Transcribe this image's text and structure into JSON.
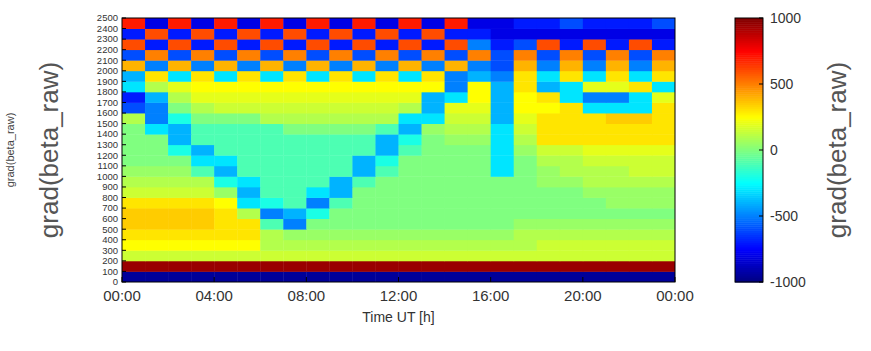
{
  "chart_data": {
    "type": "heatmap",
    "xlabel": "Time UT [h]",
    "ylabel": "grad(beta_raw)",
    "annotations": [
      "grad(beta_raw)"
    ],
    "xlim": [
      0,
      24
    ],
    "ylim": [
      0,
      2500
    ],
    "xticks": [
      {
        "value": 0,
        "label": "00:00"
      },
      {
        "value": 4,
        "label": "04:00"
      },
      {
        "value": 8,
        "label": "08:00"
      },
      {
        "value": 12,
        "label": "12:00"
      },
      {
        "value": 16,
        "label": "16:00"
      },
      {
        "value": 20,
        "label": "20:00"
      },
      {
        "value": 24,
        "label": "00:00"
      }
    ],
    "yticks": [
      0,
      100,
      200,
      300,
      400,
      500,
      600,
      700,
      800,
      900,
      1000,
      1100,
      1200,
      1300,
      1400,
      1500,
      1600,
      1700,
      1800,
      1900,
      2000,
      2100,
      2200,
      2300,
      2400,
      2500
    ],
    "grid": false,
    "x": [
      0,
      1,
      2,
      3,
      4,
      5,
      6,
      7,
      8,
      9,
      10,
      11,
      12,
      13,
      14,
      15,
      16,
      17,
      18,
      19,
      20,
      21,
      22,
      23
    ],
    "y": [
      0,
      100,
      200,
      300,
      400,
      500,
      600,
      700,
      800,
      900,
      1000,
      1100,
      1200,
      1300,
      1400,
      1500,
      1600,
      1700,
      1800,
      1900,
      2000,
      2100,
      2200,
      2300,
      2400
    ],
    "values": [
      [
        -950,
        -950,
        -950,
        -950,
        -950,
        -950,
        -950,
        -950,
        -950,
        -950,
        -950,
        -950,
        -950,
        -950,
        -950,
        -950,
        -950,
        -950,
        -950,
        -950,
        -950,
        -950,
        -950,
        -950
      ],
      [
        950,
        950,
        950,
        950,
        950,
        950,
        950,
        950,
        950,
        950,
        950,
        950,
        950,
        950,
        950,
        950,
        950,
        950,
        950,
        950,
        950,
        950,
        950,
        950
      ],
      [
        150,
        150,
        150,
        150,
        150,
        150,
        150,
        150,
        150,
        150,
        150,
        150,
        150,
        150,
        150,
        150,
        150,
        150,
        150,
        150,
        150,
        150,
        150,
        150
      ],
      [
        250,
        250,
        250,
        250,
        250,
        250,
        100,
        100,
        100,
        100,
        100,
        100,
        100,
        100,
        100,
        100,
        100,
        100,
        150,
        150,
        150,
        150,
        150,
        150
      ],
      [
        300,
        300,
        300,
        300,
        300,
        300,
        100,
        50,
        50,
        50,
        50,
        50,
        50,
        50,
        50,
        50,
        50,
        100,
        100,
        100,
        100,
        100,
        100,
        100
      ],
      [
        350,
        350,
        350,
        350,
        300,
        300,
        -100,
        -500,
        0,
        0,
        0,
        0,
        0,
        0,
        0,
        0,
        0,
        50,
        50,
        50,
        50,
        50,
        50,
        50
      ],
      [
        350,
        350,
        350,
        350,
        300,
        100,
        -500,
        -400,
        -200,
        0,
        0,
        0,
        0,
        0,
        0,
        0,
        0,
        0,
        0,
        0,
        0,
        0,
        0,
        0
      ],
      [
        300,
        300,
        300,
        300,
        250,
        -300,
        -200,
        -100,
        -500,
        -100,
        0,
        0,
        0,
        0,
        0,
        0,
        0,
        0,
        0,
        0,
        0,
        50,
        50,
        50
      ],
      [
        150,
        150,
        150,
        150,
        50,
        -400,
        -100,
        -100,
        -300,
        -400,
        0,
        0,
        0,
        0,
        0,
        0,
        0,
        0,
        0,
        0,
        50,
        50,
        50,
        50
      ],
      [
        100,
        100,
        100,
        100,
        -200,
        -300,
        -100,
        -100,
        -100,
        -400,
        -100,
        0,
        0,
        0,
        0,
        0,
        0,
        0,
        50,
        50,
        100,
        100,
        100,
        100
      ],
      [
        50,
        50,
        50,
        -100,
        -400,
        -100,
        -100,
        -100,
        -100,
        -100,
        -400,
        -100,
        0,
        0,
        0,
        0,
        -300,
        0,
        50,
        100,
        100,
        100,
        150,
        150
      ],
      [
        0,
        0,
        0,
        -300,
        -300,
        -100,
        -100,
        -100,
        -100,
        -100,
        -400,
        -200,
        0,
        0,
        0,
        0,
        -300,
        0,
        100,
        100,
        150,
        150,
        150,
        150
      ],
      [
        0,
        0,
        -200,
        -400,
        -100,
        -100,
        -100,
        -100,
        -100,
        -100,
        -100,
        -400,
        -100,
        0,
        0,
        0,
        -300,
        50,
        150,
        150,
        200,
        200,
        200,
        200
      ],
      [
        0,
        0,
        -400,
        -100,
        -100,
        -100,
        -100,
        -100,
        -100,
        -100,
        -100,
        -400,
        -200,
        0,
        50,
        50,
        -300,
        100,
        300,
        300,
        300,
        300,
        300,
        300
      ],
      [
        0,
        -300,
        -400,
        -100,
        -100,
        -100,
        -100,
        0,
        0,
        0,
        0,
        -100,
        -400,
        50,
        100,
        100,
        -300,
        150,
        300,
        300,
        300,
        300,
        300,
        300
      ],
      [
        100,
        -500,
        -200,
        0,
        0,
        0,
        100,
        100,
        100,
        100,
        100,
        100,
        -300,
        -300,
        150,
        150,
        -400,
        200,
        300,
        300,
        300,
        350,
        350,
        300
      ],
      [
        -600,
        -500,
        0,
        100,
        150,
        150,
        150,
        150,
        150,
        150,
        150,
        150,
        100,
        -400,
        200,
        200,
        -400,
        250,
        250,
        300,
        -300,
        -300,
        -300,
        300
      ],
      [
        -700,
        -400,
        100,
        200,
        200,
        200,
        200,
        200,
        200,
        200,
        200,
        200,
        200,
        -400,
        -300,
        250,
        -400,
        250,
        300,
        -300,
        -500,
        -500,
        -300,
        200
      ],
      [
        -300,
        100,
        200,
        250,
        250,
        250,
        250,
        250,
        250,
        250,
        250,
        250,
        250,
        250,
        -500,
        250,
        -400,
        300,
        -400,
        -300,
        200,
        200,
        300,
        -300
      ],
      [
        -400,
        300,
        -300,
        300,
        -300,
        300,
        -300,
        300,
        -300,
        300,
        -300,
        300,
        -300,
        300,
        -500,
        -400,
        -500,
        300,
        -300,
        300,
        -300,
        300,
        -300,
        300
      ],
      [
        400,
        -500,
        400,
        -500,
        400,
        -500,
        400,
        -500,
        400,
        -500,
        400,
        -500,
        400,
        -500,
        400,
        -500,
        -600,
        400,
        -500,
        400,
        -500,
        400,
        -500,
        400
      ],
      [
        -600,
        500,
        -600,
        500,
        -600,
        500,
        -600,
        500,
        -600,
        500,
        -600,
        500,
        -600,
        500,
        -600,
        500,
        -600,
        500,
        -600,
        500,
        -600,
        500,
        -600,
        500
      ],
      [
        600,
        -700,
        600,
        -700,
        600,
        -700,
        600,
        -700,
        600,
        -700,
        600,
        -700,
        600,
        -700,
        600,
        -500,
        -700,
        -600,
        600,
        -700,
        600,
        -700,
        600,
        -700
      ],
      [
        -700,
        600,
        -700,
        600,
        -700,
        600,
        -700,
        600,
        -700,
        600,
        -700,
        600,
        -700,
        600,
        -700,
        -700,
        -800,
        -800,
        -800,
        -800,
        -800,
        -800,
        -800,
        -800
      ],
      [
        700,
        -800,
        700,
        -800,
        700,
        -800,
        700,
        -800,
        700,
        -800,
        700,
        -800,
        700,
        -800,
        700,
        -800,
        -800,
        -700,
        -700,
        -600,
        -700,
        -700,
        -700,
        -600
      ]
    ],
    "colorbar": {
      "label": "grad(beta_raw)",
      "lim": [
        -1000,
        1000
      ],
      "ticks": [
        -1000,
        -500,
        0,
        500,
        1000
      ]
    }
  }
}
